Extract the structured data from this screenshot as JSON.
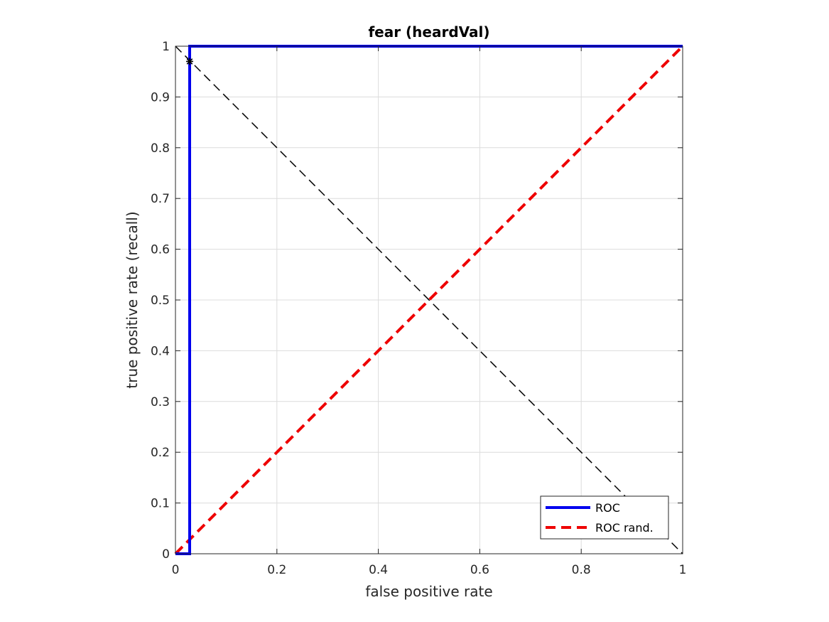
{
  "chart_data": {
    "type": "line",
    "title": "fear (heardVal)",
    "xlabel": "false positive rate",
    "ylabel": "true positive rate (recall)",
    "xlim": [
      0,
      1
    ],
    "ylim": [
      0,
      1
    ],
    "xticks": [
      0,
      0.2,
      0.4,
      0.6,
      0.8,
      1
    ],
    "xtick_labels": [
      "0",
      "0.2",
      "0.4",
      "0.6",
      "0.8",
      "1"
    ],
    "yticks": [
      0,
      0.1,
      0.2,
      0.3,
      0.4,
      0.5,
      0.6,
      0.7,
      0.8,
      0.9,
      1
    ],
    "ytick_labels": [
      "0",
      "0.1",
      "0.2",
      "0.3",
      "0.4",
      "0.5",
      "0.6",
      "0.7",
      "0.8",
      "0.9",
      "1"
    ],
    "grid": true,
    "legend_position": "bottom-right",
    "series": [
      {
        "name": "ROC",
        "color": "#0000ee",
        "style": "solid",
        "x": [
          0,
          0.028,
          0.028,
          0.028,
          1
        ],
        "y": [
          0,
          0,
          0.97,
          1,
          1
        ]
      },
      {
        "name": "ROC rand.",
        "color": "#ee0000",
        "style": "dashed",
        "x": [
          0,
          1
        ],
        "y": [
          0,
          1
        ]
      }
    ],
    "reference_line": {
      "color": "#000000",
      "style": "dashed",
      "x": [
        0,
        1
      ],
      "y": [
        1,
        0
      ]
    },
    "marker": {
      "x": 0.028,
      "y": 0.97,
      "symbol": "*",
      "color": "#000000"
    }
  }
}
